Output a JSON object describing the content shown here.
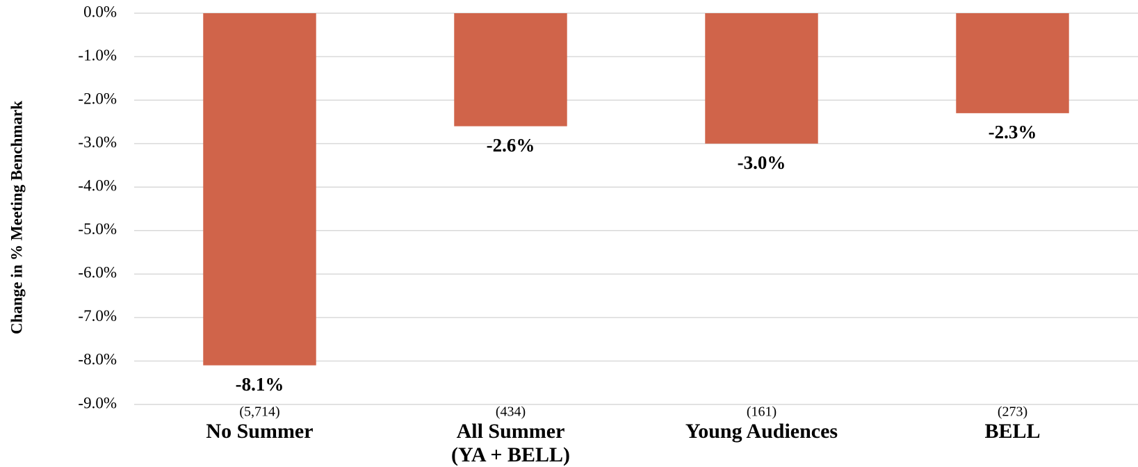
{
  "chart_data": {
    "type": "bar",
    "y_label": "Change in % Meeting Benchmark",
    "categories": [
      "No Summer",
      "All Summer\n(YA + BELL)",
      "Young Audiences",
      "BELL"
    ],
    "sample_sizes": [
      "(5,714)",
      "(434)",
      "(161)",
      "(273)"
    ],
    "values": [
      -8.1,
      -2.6,
      -3.0,
      -2.3
    ],
    "value_labels": [
      "-8.1%",
      "-2.6%",
      "-3.0%",
      "-2.3%"
    ],
    "color": "#d0644a",
    "ylim": [
      -9,
      0
    ],
    "yticks": [
      {
        "value": 0,
        "label": "0.0%"
      },
      {
        "value": -1,
        "label": "-1.0%"
      },
      {
        "value": -2,
        "label": "-2.0%"
      },
      {
        "value": -3,
        "label": "-3.0%"
      },
      {
        "value": -4,
        "label": "-4.0%"
      },
      {
        "value": -5,
        "label": "-5.0%"
      },
      {
        "value": -6,
        "label": "-6.0%"
      },
      {
        "value": -7,
        "label": "-7.0%"
      },
      {
        "value": -8,
        "label": "-8.0%"
      },
      {
        "value": -9,
        "label": "-9.0%"
      }
    ],
    "grid": true
  }
}
